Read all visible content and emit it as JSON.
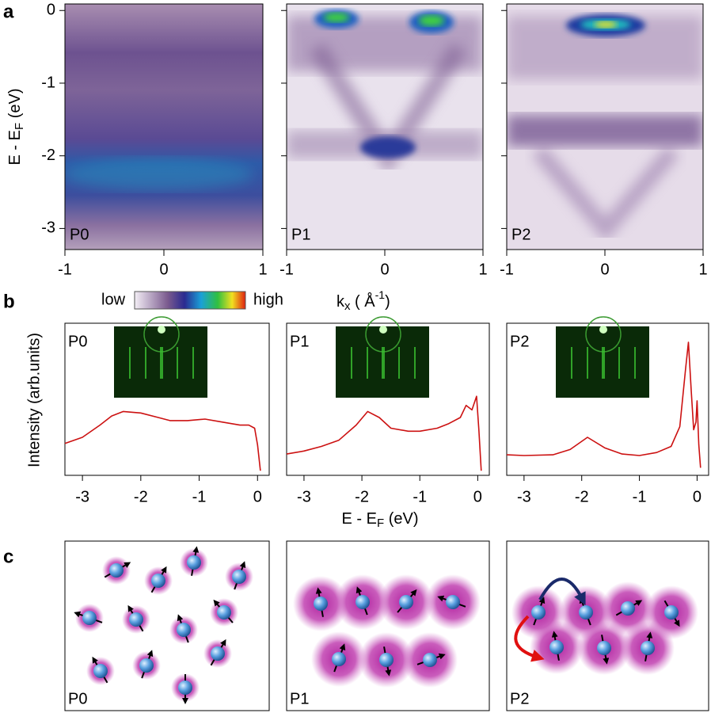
{
  "figure": {
    "panel_labels": [
      "a",
      "b",
      "c"
    ],
    "samples": [
      "P0",
      "P1",
      "P2"
    ],
    "a": {
      "ylabel": [
        "E - E",
        "F",
        " (eV)"
      ],
      "yticks": [
        0,
        -1,
        -2,
        -3
      ],
      "ylim": [
        0.09,
        -3.29
      ],
      "xticks": [
        -1,
        0,
        1
      ],
      "xlim": [
        -1,
        1
      ],
      "xlabel": [
        "k",
        "x",
        " ( Å",
        "-1",
        ")"
      ],
      "colorbar": [
        "low",
        "high"
      ]
    },
    "b": {
      "ylabel": "Intensity (arb.units)",
      "xlabel": [
        "E - E",
        "F",
        " (eV)"
      ]
    }
  },
  "chart_data": [
    {
      "type": "line",
      "title": "P0",
      "color": "#cc1111",
      "xlim": [
        -3.3,
        0.2
      ],
      "ylim": [
        0,
        1
      ],
      "xticks": [
        -3,
        -2,
        -1,
        0
      ],
      "x": [
        -3.3,
        -3.0,
        -2.7,
        -2.5,
        -2.3,
        -2.0,
        -1.7,
        -1.5,
        -1.2,
        -0.9,
        -0.6,
        -0.3,
        -0.15,
        -0.05,
        0.0,
        0.05
      ],
      "values": [
        0.21,
        0.25,
        0.33,
        0.39,
        0.42,
        0.41,
        0.38,
        0.36,
        0.36,
        0.37,
        0.35,
        0.33,
        0.33,
        0.31,
        0.2,
        0.03
      ]
    },
    {
      "type": "line",
      "title": "P1",
      "color": "#cc1111",
      "xlim": [
        -3.3,
        0.2
      ],
      "ylim": [
        0,
        1
      ],
      "xticks": [
        -3,
        -2,
        -1,
        0
      ],
      "x": [
        -3.3,
        -3.0,
        -2.7,
        -2.4,
        -2.1,
        -1.9,
        -1.7,
        -1.5,
        -1.2,
        -1.0,
        -0.7,
        -0.5,
        -0.3,
        -0.2,
        -0.1,
        -0.02,
        0.02,
        0.06
      ],
      "values": [
        0.14,
        0.16,
        0.19,
        0.23,
        0.33,
        0.42,
        0.38,
        0.31,
        0.29,
        0.29,
        0.31,
        0.34,
        0.38,
        0.46,
        0.43,
        0.52,
        0.3,
        0.03
      ]
    },
    {
      "type": "line",
      "title": "P2",
      "color": "#cc1111",
      "xlim": [
        -3.3,
        0.2
      ],
      "ylim": [
        0,
        1
      ],
      "xticks": [
        -3,
        -2,
        -1,
        0
      ],
      "x": [
        -3.3,
        -3.0,
        -2.5,
        -2.2,
        -1.9,
        -1.6,
        -1.3,
        -1.0,
        -0.7,
        -0.45,
        -0.3,
        -0.2,
        -0.15,
        -0.1,
        -0.06,
        -0.02,
        0.0,
        0.03,
        0.06
      ],
      "values": [
        0.135,
        0.13,
        0.135,
        0.17,
        0.25,
        0.18,
        0.14,
        0.13,
        0.15,
        0.19,
        0.32,
        0.7,
        0.875,
        0.55,
        0.3,
        0.35,
        0.49,
        0.2,
        0.05
      ]
    }
  ]
}
